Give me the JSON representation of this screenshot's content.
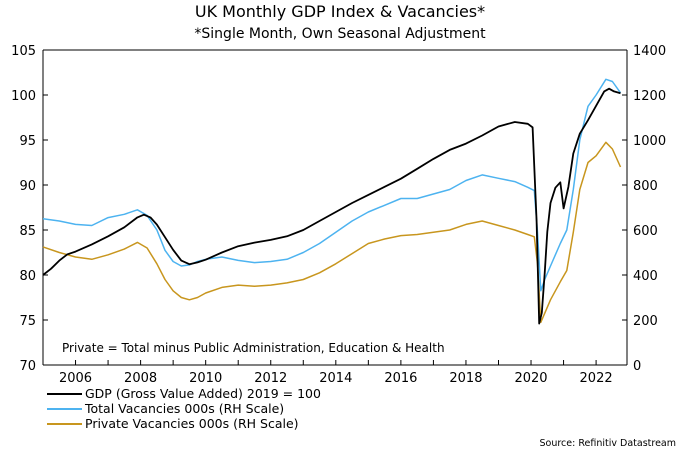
{
  "chart_data": {
    "type": "line",
    "title": "UK Monthly GDP Index & Vacancies*",
    "subtitle": "*Single Month, Own Seasonal Adjustment",
    "annotation": "Private = Total minus Public Administration, Education & Health",
    "source": "Source: Refinitiv Datastream",
    "x_ticks": [
      "2006",
      "2008",
      "2010",
      "2012",
      "2014",
      "2016",
      "2018",
      "2020",
      "2022"
    ],
    "xlim": [
      2005.0,
      2022.95
    ],
    "y_left": {
      "ylim": [
        70,
        105
      ],
      "ticks": [
        "70",
        "75",
        "80",
        "85",
        "90",
        "95",
        "100",
        "105"
      ]
    },
    "y_right": {
      "ylim": [
        0,
        1400
      ],
      "ticks": [
        "0",
        "200",
        "400",
        "600",
        "800",
        "1000",
        "1200",
        "1400"
      ]
    },
    "legend_placement": "bottom-left",
    "series": [
      {
        "name": "GDP (Gross Value Added) 2019 = 100",
        "axis": "left",
        "color": "#000000",
        "points": [
          [
            2005.0,
            80.0
          ],
          [
            2005.25,
            80.7
          ],
          [
            2005.5,
            81.6
          ],
          [
            2005.75,
            82.3
          ],
          [
            2006.0,
            82.6
          ],
          [
            2006.5,
            83.4
          ],
          [
            2007.0,
            84.3
          ],
          [
            2007.5,
            85.3
          ],
          [
            2007.9,
            86.4
          ],
          [
            2008.1,
            86.7
          ],
          [
            2008.3,
            86.4
          ],
          [
            2008.5,
            85.6
          ],
          [
            2008.75,
            84.2
          ],
          [
            2009.0,
            82.8
          ],
          [
            2009.25,
            81.6
          ],
          [
            2009.5,
            81.2
          ],
          [
            2009.75,
            81.4
          ],
          [
            2010.0,
            81.7
          ],
          [
            2010.5,
            82.5
          ],
          [
            2011.0,
            83.2
          ],
          [
            2011.5,
            83.6
          ],
          [
            2012.0,
            83.9
          ],
          [
            2012.5,
            84.3
          ],
          [
            2013.0,
            85.0
          ],
          [
            2013.5,
            86.0
          ],
          [
            2014.0,
            87.0
          ],
          [
            2014.5,
            88.0
          ],
          [
            2015.0,
            88.9
          ],
          [
            2015.5,
            89.8
          ],
          [
            2016.0,
            90.7
          ],
          [
            2016.5,
            91.8
          ],
          [
            2017.0,
            92.9
          ],
          [
            2017.5,
            93.9
          ],
          [
            2018.0,
            94.6
          ],
          [
            2018.5,
            95.5
          ],
          [
            2019.0,
            96.5
          ],
          [
            2019.5,
            97.0
          ],
          [
            2019.9,
            96.8
          ],
          [
            2020.05,
            96.4
          ],
          [
            2020.17,
            86.0
          ],
          [
            2020.25,
            74.6
          ],
          [
            2020.33,
            75.8
          ],
          [
            2020.42,
            80.2
          ],
          [
            2020.5,
            84.8
          ],
          [
            2020.6,
            88.0
          ],
          [
            2020.75,
            89.7
          ],
          [
            2020.9,
            90.3
          ],
          [
            2021.0,
            87.4
          ],
          [
            2021.15,
            89.8
          ],
          [
            2021.3,
            93.5
          ],
          [
            2021.5,
            95.7
          ],
          [
            2021.75,
            97.2
          ],
          [
            2022.0,
            98.8
          ],
          [
            2022.25,
            100.4
          ],
          [
            2022.4,
            100.7
          ],
          [
            2022.55,
            100.4
          ],
          [
            2022.75,
            100.2
          ]
        ]
      },
      {
        "name": "Total Vacancies 000s (RH Scale)",
        "axis": "right",
        "color": "#4db3f0",
        "points": [
          [
            2005.0,
            650
          ],
          [
            2005.5,
            640
          ],
          [
            2006.0,
            625
          ],
          [
            2006.5,
            620
          ],
          [
            2007.0,
            655
          ],
          [
            2007.5,
            670
          ],
          [
            2007.9,
            690
          ],
          [
            2008.2,
            665
          ],
          [
            2008.5,
            600
          ],
          [
            2008.75,
            510
          ],
          [
            2009.0,
            460
          ],
          [
            2009.25,
            440
          ],
          [
            2009.5,
            445
          ],
          [
            2009.75,
            460
          ],
          [
            2010.0,
            470
          ],
          [
            2010.5,
            480
          ],
          [
            2011.0,
            465
          ],
          [
            2011.5,
            455
          ],
          [
            2012.0,
            460
          ],
          [
            2012.5,
            470
          ],
          [
            2013.0,
            500
          ],
          [
            2013.5,
            540
          ],
          [
            2014.0,
            590
          ],
          [
            2014.5,
            640
          ],
          [
            2015.0,
            680
          ],
          [
            2015.5,
            710
          ],
          [
            2016.0,
            740
          ],
          [
            2016.5,
            740
          ],
          [
            2017.0,
            760
          ],
          [
            2017.5,
            780
          ],
          [
            2018.0,
            820
          ],
          [
            2018.5,
            845
          ],
          [
            2019.0,
            830
          ],
          [
            2019.5,
            815
          ],
          [
            2019.9,
            790
          ],
          [
            2020.1,
            775
          ],
          [
            2020.2,
            590
          ],
          [
            2020.3,
            330
          ],
          [
            2020.42,
            380
          ],
          [
            2020.6,
            440
          ],
          [
            2020.9,
            540
          ],
          [
            2021.1,
            600
          ],
          [
            2021.3,
            780
          ],
          [
            2021.5,
            1000
          ],
          [
            2021.75,
            1150
          ],
          [
            2022.0,
            1200
          ],
          [
            2022.3,
            1270
          ],
          [
            2022.5,
            1260
          ],
          [
            2022.75,
            1210
          ]
        ]
      },
      {
        "name": "Private Vacancies 000s (RH Scale)",
        "axis": "right",
        "color": "#c8961e",
        "points": [
          [
            2005.0,
            525
          ],
          [
            2005.5,
            500
          ],
          [
            2006.0,
            480
          ],
          [
            2006.5,
            470
          ],
          [
            2007.0,
            490
          ],
          [
            2007.5,
            515
          ],
          [
            2007.9,
            545
          ],
          [
            2008.2,
            520
          ],
          [
            2008.5,
            450
          ],
          [
            2008.75,
            380
          ],
          [
            2009.0,
            330
          ],
          [
            2009.25,
            300
          ],
          [
            2009.5,
            290
          ],
          [
            2009.75,
            300
          ],
          [
            2010.0,
            320
          ],
          [
            2010.5,
            345
          ],
          [
            2011.0,
            355
          ],
          [
            2011.5,
            350
          ],
          [
            2012.0,
            355
          ],
          [
            2012.5,
            365
          ],
          [
            2013.0,
            380
          ],
          [
            2013.5,
            410
          ],
          [
            2014.0,
            450
          ],
          [
            2014.5,
            495
          ],
          [
            2015.0,
            540
          ],
          [
            2015.5,
            560
          ],
          [
            2016.0,
            575
          ],
          [
            2016.5,
            580
          ],
          [
            2017.0,
            590
          ],
          [
            2017.5,
            600
          ],
          [
            2018.0,
            625
          ],
          [
            2018.5,
            640
          ],
          [
            2019.0,
            620
          ],
          [
            2019.5,
            600
          ],
          [
            2019.9,
            580
          ],
          [
            2020.1,
            570
          ],
          [
            2020.2,
            450
          ],
          [
            2020.3,
            190
          ],
          [
            2020.42,
            230
          ],
          [
            2020.6,
            290
          ],
          [
            2020.9,
            370
          ],
          [
            2021.1,
            420
          ],
          [
            2021.3,
            590
          ],
          [
            2021.5,
            780
          ],
          [
            2021.75,
            900
          ],
          [
            2022.0,
            930
          ],
          [
            2022.3,
            990
          ],
          [
            2022.5,
            960
          ],
          [
            2022.75,
            880
          ]
        ]
      }
    ]
  }
}
